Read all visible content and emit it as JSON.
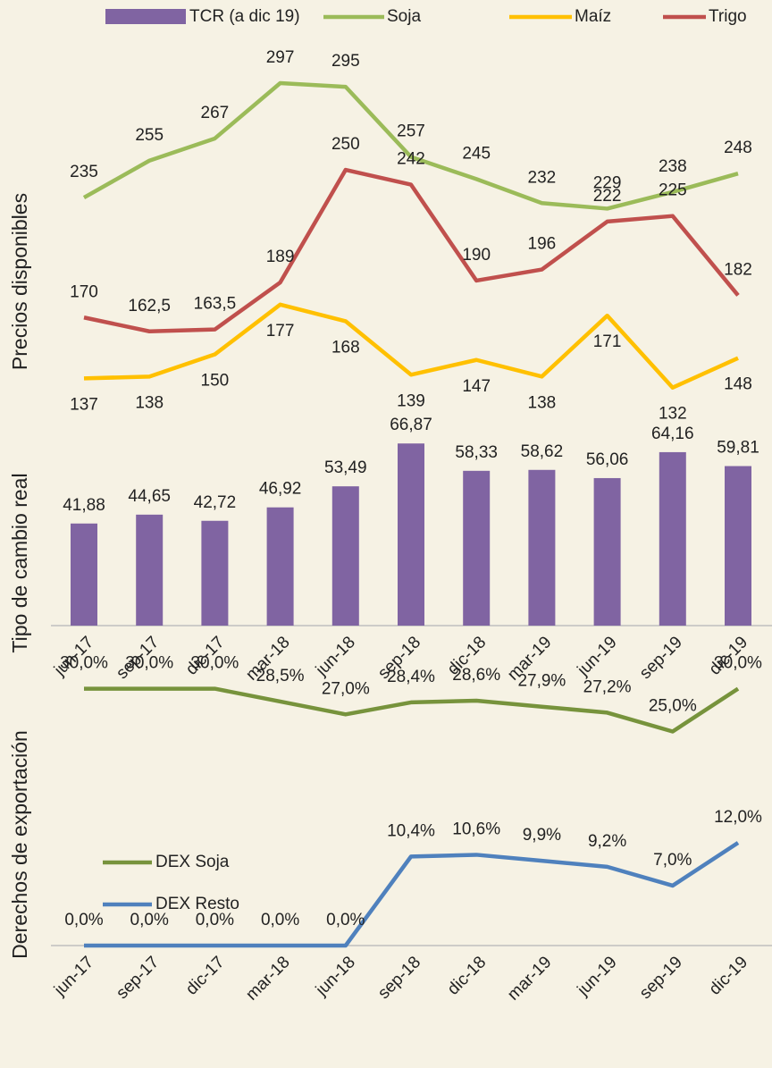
{
  "chart_data": [
    {
      "type": "line",
      "y_label": "Precios disponibles",
      "ylim": [
        120,
        305
      ],
      "legend": "top",
      "series": [
        {
          "name": "Soja",
          "color": "#9bbb59",
          "values": [
            235,
            255,
            267,
            297,
            295,
            257,
            245,
            232,
            229,
            238,
            248
          ]
        },
        {
          "name": "Maíz",
          "color": "#ffc000",
          "values": [
            137,
            138,
            150,
            177,
            168,
            139,
            147,
            138,
            171,
            132,
            148
          ]
        },
        {
          "name": "Trigo",
          "color": "#c0504d",
          "values": [
            170,
            162.5,
            163.5,
            189,
            250,
            242,
            190,
            196,
            222,
            225,
            182
          ],
          "value_labels": [
            "170",
            "162,5",
            "163,5",
            "189",
            "250",
            "242",
            "190",
            "196",
            "222",
            "225",
            "182"
          ]
        }
      ]
    },
    {
      "type": "bar",
      "y_label": "Tipo de cambio real",
      "ylim": [
        10,
        70
      ],
      "categories": [
        "jun-17",
        "sep-17",
        "dic-17",
        "mar-18",
        "jun-18",
        "sep-18",
        "dic-18",
        "mar-19",
        "jun-19",
        "sep-19",
        "dic-19"
      ],
      "series": [
        {
          "name": "TCR (a dic 19)",
          "color": "#8064a2",
          "values": [
            41.88,
            44.65,
            42.72,
            46.92,
            53.49,
            66.87,
            58.33,
            58.62,
            56.06,
            64.16,
            59.81
          ],
          "value_labels": [
            "41,88",
            "44,65",
            "42,72",
            "46,92",
            "53,49",
            "66,87",
            "58,33",
            "58,62",
            "56,06",
            "64,16",
            "59,81"
          ]
        }
      ]
    },
    {
      "type": "line",
      "y_label": "Derechos de exportación",
      "ylim": [
        0,
        31
      ],
      "legend": "left",
      "categories": [
        "jun-17",
        "sep-17",
        "dic-17",
        "mar-18",
        "jun-18",
        "sep-18",
        "dic-18",
        "mar-19",
        "jun-19",
        "sep-19",
        "dic-19"
      ],
      "series": [
        {
          "name": "DEX Soja",
          "color": "#77933c",
          "values": [
            30,
            30,
            30,
            28.5,
            27,
            28.4,
            28.6,
            27.9,
            27.2,
            25,
            30
          ],
          "value_labels": [
            "30,0%",
            "30,0%",
            "30,0%",
            "28,5%",
            "27,0%",
            "28,4%",
            "28,6%",
            "27,9%",
            "27,2%",
            "25,0%",
            "30,0%"
          ]
        },
        {
          "name": "DEX Resto",
          "color": "#4f81bd",
          "values": [
            0,
            0,
            0,
            0,
            0,
            10.4,
            10.6,
            9.9,
            9.2,
            7,
            12
          ],
          "value_labels": [
            "0,0%",
            "0,0%",
            "0,0%",
            "0,0%",
            "0,0%",
            "10,4%",
            "10,6%",
            "9,9%",
            "9,2%",
            "7,0%",
            "12,0%"
          ]
        }
      ]
    }
  ]
}
